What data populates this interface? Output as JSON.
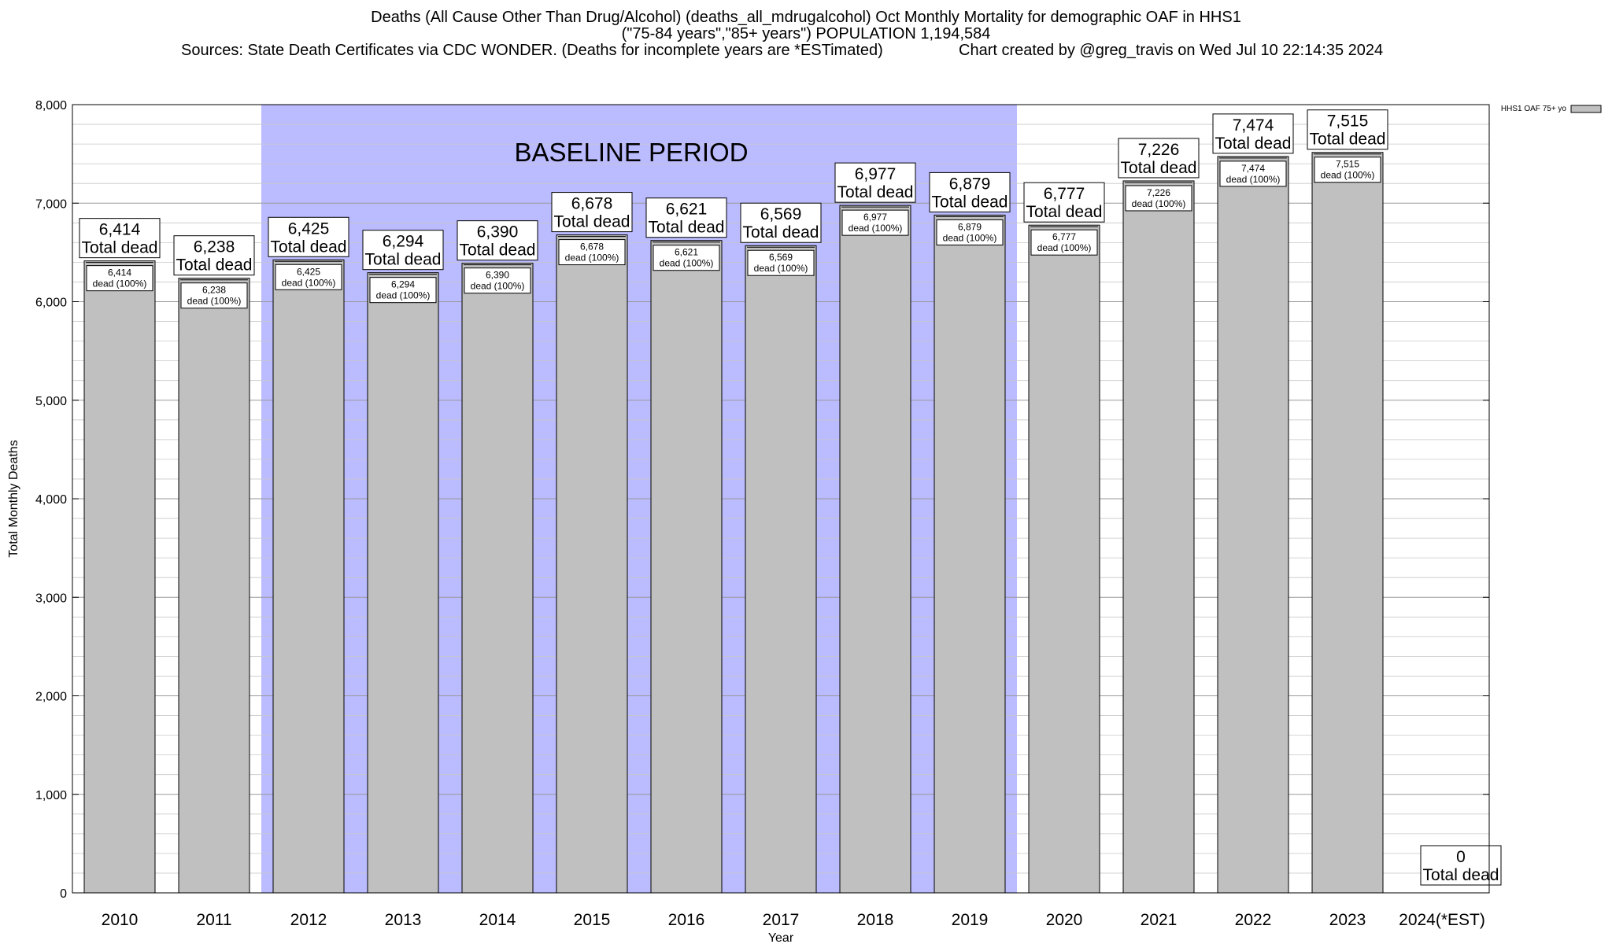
{
  "title": {
    "line1": "Deaths (All Cause Other Than Drug/Alcohol) (deaths_all_mdrugalcohol) Oct Monthly Mortality for demographic OAF in HHS1",
    "line2": "(\"75-84 years\",\"85+ years\") POPULATION 1,194,584",
    "line3_left": "Sources: State Death Certificates via CDC WONDER. (Deaths for incomplete years are *ESTimated)",
    "line3_right": "Chart created by @greg_travis on Wed Jul 10 22:14:35 2024"
  },
  "chart_data": {
    "type": "bar",
    "xlabel": "Year",
    "ylabel": "Total Monthly Deaths",
    "ylim": [
      0,
      8000
    ],
    "yticks": [
      0,
      1000,
      2000,
      3000,
      4000,
      5000,
      6000,
      7000,
      8000
    ],
    "ytick_labels": [
      "0",
      "1,000",
      "2,000",
      "3,000",
      "4,000",
      "5,000",
      "6,000",
      "7,000",
      "8,000"
    ],
    "grid": true,
    "categories": [
      "2010",
      "2011",
      "2012",
      "2013",
      "2014",
      "2015",
      "2016",
      "2017",
      "2018",
      "2019",
      "2020",
      "2021",
      "2022",
      "2023",
      "2024(*EST)"
    ],
    "series": [
      {
        "name": "HHS1 OAF 75+ yo",
        "color": "#c0c0c0",
        "values": [
          6414,
          6238,
          6425,
          6294,
          6390,
          6678,
          6621,
          6569,
          6977,
          6879,
          6777,
          7226,
          7474,
          7515,
          0
        ]
      }
    ],
    "total_labels": [
      "6,414",
      "6,238",
      "6,425",
      "6,294",
      "6,390",
      "6,678",
      "6,621",
      "6,569",
      "6,977",
      "6,879",
      "6,777",
      "7,226",
      "7,474",
      "7,515",
      "0"
    ],
    "total_caption": "Total dead",
    "inner_labels": [
      "6,414",
      "6,238",
      "6,425",
      "6,294",
      "6,390",
      "6,678",
      "6,621",
      "6,569",
      "6,977",
      "6,879",
      "6,777",
      "7,226",
      "7,474",
      "7,515"
    ],
    "inner_caption": "dead (100%)",
    "baseline": {
      "label": "BASELINE PERIOD",
      "from": "2012",
      "to": "2019",
      "color": "#bbbbff"
    },
    "legend": {
      "label": "HHS1 OAF 75+ yo",
      "position": "top-right"
    }
  }
}
